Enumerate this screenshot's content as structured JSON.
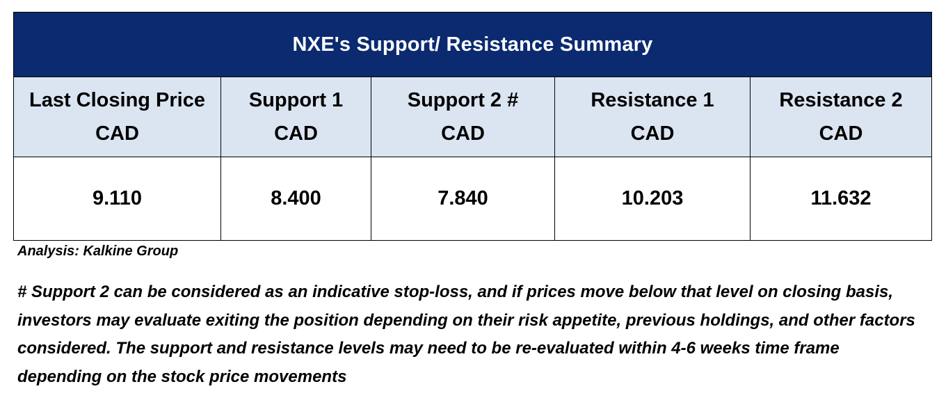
{
  "table": {
    "title": "NXE's Support/  Resistance Summary",
    "columns": [
      {
        "label": "Last Closing Price",
        "unit": "CAD",
        "value": "9.110"
      },
      {
        "label": "Support 1",
        "unit": "CAD",
        "value": "8.400"
      },
      {
        "label": "Support 2 #",
        "unit": "CAD",
        "value": "7.840"
      },
      {
        "label": "Resistance 1",
        "unit": "CAD",
        "value": "10.203"
      },
      {
        "label": "Resistance 2",
        "unit": "CAD",
        "value": "11.632"
      }
    ]
  },
  "source": "Analysis: Kalkine Group",
  "note": "# Support 2 can be considered as an indicative stop-loss, and if prices move below that level on closing basis, investors may evaluate exiting the position depending on their risk appetite, previous holdings, and other factors considered. The support and resistance levels may need to be re-evaluated within 4-6 weeks time frame depending on the stock price movements",
  "colors": {
    "title_background": "#0b2a6f",
    "header_background": "#dbe5f1",
    "title_text": "#ffffff"
  }
}
